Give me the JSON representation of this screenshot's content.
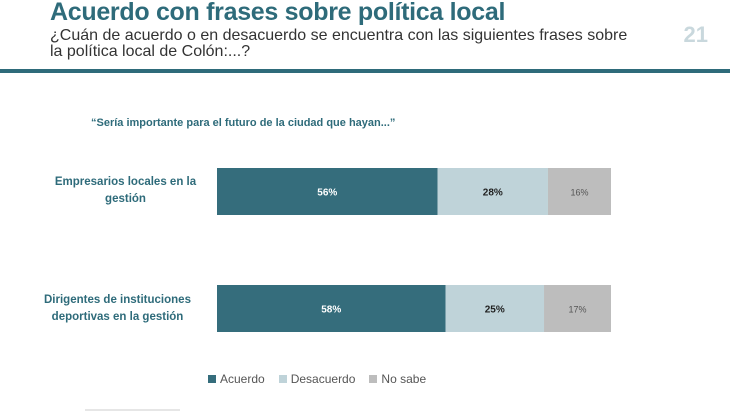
{
  "header": {
    "title": "Acuerdo con frases sobre política local",
    "subtitle": "¿Cuán de acuerdo o en desacuerdo se encuentra con las siguientes frases sobre la política local de Colón:...?",
    "page_number": "21"
  },
  "colors": {
    "accent": "#2e6b7a",
    "acuerdo": "#356d7c",
    "desacuerdo": "#bfd3d9",
    "no_sabe": "#bdbdbd"
  },
  "chart_data": {
    "type": "bar",
    "orientation": "horizontal",
    "stacked": true,
    "title": "“Sería importante para el futuro de la ciudad que hayan...”",
    "categories": [
      "Empresarios locales en la gestión",
      "Dirigentes de instituciones deportivas en la gestión"
    ],
    "series": [
      {
        "name": "Acuerdo",
        "values": [
          56,
          58
        ],
        "labels": [
          "56%",
          "58%"
        ]
      },
      {
        "name": "Desacuerdo",
        "values": [
          28,
          25
        ],
        "labels": [
          "28%",
          "25%"
        ]
      },
      {
        "name": "No sabe",
        "values": [
          16,
          17
        ],
        "labels": [
          "16%",
          "17%"
        ]
      }
    ],
    "xlim": [
      0,
      100
    ],
    "grid": false,
    "legend_position": "bottom"
  }
}
